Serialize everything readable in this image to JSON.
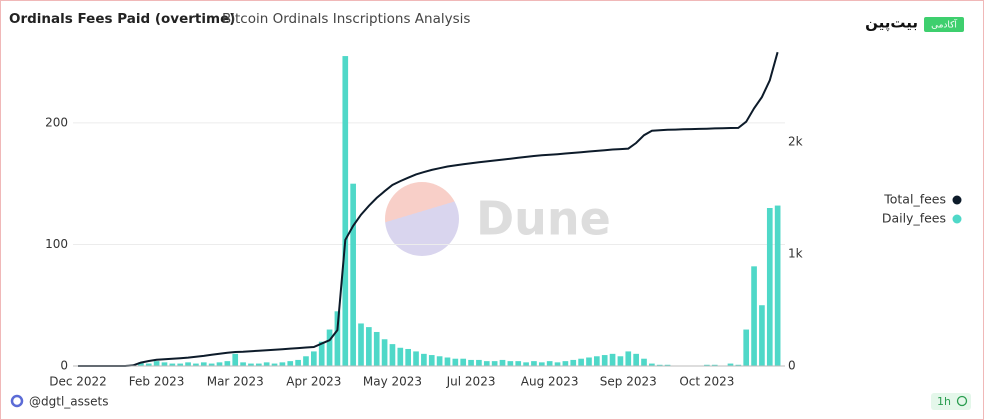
{
  "chart_data": {
    "type": "bar-line",
    "title": "Ordinals Fees Paid (overtime)",
    "subtitle": "Bitcoin Ordinals Inscriptions Analysis",
    "watermark": "Dune",
    "brand": "بیت‌پین",
    "brand_badge": "آکادمی",
    "author": "@dgtl_assets",
    "refresh": "1h",
    "categories": [
      "Dec 2022",
      null,
      null,
      null,
      null,
      null,
      null,
      null,
      null,
      null,
      "Feb 2023",
      null,
      null,
      null,
      null,
      null,
      null,
      null,
      null,
      null,
      "Mar 2023",
      null,
      null,
      null,
      null,
      null,
      null,
      null,
      null,
      null,
      "Apr 2023",
      null,
      null,
      null,
      null,
      null,
      null,
      null,
      null,
      null,
      "May 2023",
      null,
      null,
      null,
      null,
      null,
      null,
      null,
      null,
      null,
      "Jul 2023",
      null,
      null,
      null,
      null,
      null,
      null,
      null,
      null,
      null,
      "Aug 2023",
      null,
      null,
      null,
      null,
      null,
      null,
      null,
      null,
      null,
      "Sep 2023",
      null,
      null,
      null,
      null,
      null,
      null,
      null,
      null,
      null,
      "Oct 2023",
      null,
      null,
      null,
      null,
      null,
      null,
      null,
      null,
      null
    ],
    "series": [
      {
        "name": "Total_fees",
        "type": "line",
        "axis": "y2",
        "color": "#0d1b2a",
        "values": [
          0,
          0,
          0,
          0,
          0,
          0,
          0,
          5,
          30,
          45,
          55,
          60,
          65,
          70,
          75,
          82,
          90,
          100,
          110,
          118,
          125,
          128,
          132,
          136,
          140,
          145,
          150,
          155,
          160,
          165,
          170,
          200,
          230,
          320,
          1125,
          1250,
          1350,
          1430,
          1500,
          1560,
          1615,
          1650,
          1680,
          1710,
          1730,
          1750,
          1765,
          1780,
          1790,
          1800,
          1810,
          1818,
          1826,
          1834,
          1842,
          1850,
          1858,
          1866,
          1874,
          1880,
          1885,
          1890,
          1896,
          1902,
          1908,
          1914,
          1920,
          1926,
          1932,
          1936,
          1940,
          1990,
          2060,
          2100,
          2104,
          2108,
          2110,
          2112,
          2114,
          2116,
          2118,
          2120,
          2122,
          2124,
          2125,
          2180,
          2300,
          2400,
          2550,
          2800
        ]
      },
      {
        "name": "Daily_fees",
        "type": "bar",
        "color": "#4fd8c8",
        "values": [
          0,
          0,
          0,
          0,
          0,
          0,
          0,
          1,
          3,
          2,
          4,
          3,
          2,
          2,
          3,
          2,
          3,
          2,
          3,
          4,
          10,
          3,
          2,
          2,
          3,
          2,
          3,
          4,
          5,
          8,
          12,
          20,
          30,
          45,
          255,
          150,
          35,
          32,
          28,
          22,
          18,
          15,
          14,
          12,
          10,
          9,
          8,
          7,
          6,
          6,
          5,
          5,
          4,
          4,
          5,
          4,
          4,
          3,
          4,
          3,
          4,
          3,
          4,
          5,
          6,
          7,
          8,
          9,
          10,
          8,
          12,
          10,
          6,
          2,
          1,
          1,
          0,
          0,
          0,
          0,
          1,
          1,
          0,
          2,
          1,
          30,
          82,
          50,
          130,
          132
        ]
      }
    ],
    "ylim": [
      0,
      260
    ],
    "yticks": [
      0,
      100,
      200
    ],
    "y2lim": [
      0,
      2820
    ],
    "y2ticks": [
      0,
      {
        "value": 1000,
        "label": "1k"
      },
      {
        "value": 2000,
        "label": "2k"
      }
    ],
    "grid": true,
    "legend": "right"
  }
}
